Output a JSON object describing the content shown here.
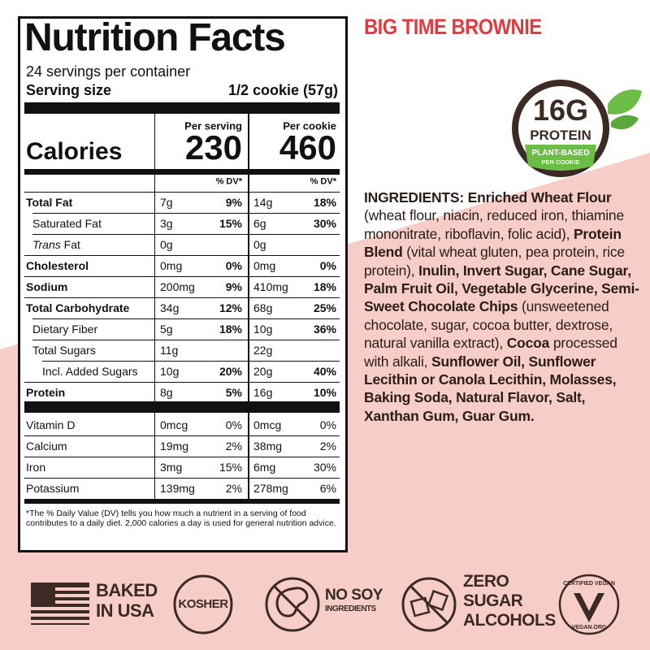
{
  "product_name": "BIG TIME BROWNIE",
  "nutrition_facts": {
    "title": "Nutrition Facts",
    "servings": "24 servings per container",
    "serving_size_label": "Serving size",
    "serving_size": "1/2 cookie (57g)",
    "column_headers": [
      "Per serving",
      "Per cookie"
    ],
    "calories_label": "Calories",
    "calories": [
      230,
      460
    ],
    "dv_headers": [
      "% DV*",
      "% DV*"
    ],
    "rows": [
      {
        "name": "Total Fat",
        "bold": true,
        "indent": 0,
        "amounts": [
          "7g",
          "14g"
        ],
        "dv": [
          "9%",
          "18%"
        ]
      },
      {
        "name": "Saturated Fat",
        "bold": false,
        "indent": 1,
        "amounts": [
          "3g",
          "6g"
        ],
        "dv": [
          "15%",
          "30%"
        ]
      },
      {
        "italic_prefix": "Trans",
        "name": "Fat",
        "bold": false,
        "indent": 1,
        "amounts": [
          "0g",
          "0g"
        ]
      },
      {
        "name": "Cholesterol",
        "bold": true,
        "indent": 0,
        "amounts": [
          "0mg",
          "0mg"
        ],
        "dv": [
          "0%",
          "0%"
        ]
      },
      {
        "name": "Sodium",
        "bold": true,
        "indent": 0,
        "amounts": [
          "200mg",
          "410mg"
        ],
        "dv": [
          "9%",
          "18%"
        ]
      },
      {
        "name": "Total Carbohydrate",
        "bold": true,
        "indent": 0,
        "amounts": [
          "34g",
          "68g"
        ],
        "dv": [
          "12%",
          "25%"
        ]
      },
      {
        "name": "Dietary Fiber",
        "bold": false,
        "indent": 1,
        "amounts": [
          "5g",
          "10g"
        ],
        "dv": [
          "18%",
          "36%"
        ]
      },
      {
        "name": "Total Sugars",
        "bold": false,
        "indent": 1,
        "amounts": [
          "11g",
          "22g"
        ]
      },
      {
        "name": "Incl. Added Sugars",
        "bold": false,
        "indent": 2,
        "amounts": [
          "10g",
          "20g"
        ],
        "dv": [
          "20%",
          "40%"
        ]
      },
      {
        "name": "Protein",
        "bold": true,
        "indent": 0,
        "amounts": [
          "8g",
          "16g"
        ],
        "dv": [
          "5%",
          "10%"
        ]
      }
    ],
    "vitamins": [
      {
        "name": "Vitamin D",
        "amounts": [
          "0mcg",
          "0mcg"
        ],
        "dv": [
          "0%",
          "0%"
        ]
      },
      {
        "name": "Calcium",
        "amounts": [
          "19mg",
          "38mg"
        ],
        "dv": [
          "2%",
          "2%"
        ]
      },
      {
        "name": "Iron",
        "amounts": [
          "3mg",
          "6mg"
        ],
        "dv": [
          "15%",
          "30%"
        ]
      },
      {
        "name": "Potassium",
        "amounts": [
          "139mg",
          "278mg"
        ],
        "dv": [
          "2%",
          "6%"
        ]
      }
    ],
    "footnote": "*The % Daily Value (DV) tells you how much a nutrient in a serving of food contributes to a daily diet. 2,000 calories a day is used for general nutrition advice."
  },
  "badge": {
    "amount": "16G",
    "label": "PROTEIN",
    "ribbon": "PLANT-BASED",
    "ribbon_sub": "PER COOKIE"
  },
  "ingredients": [
    {
      "text": "INGREDIENTS: Enriched Wheat Flour",
      "bold": true
    },
    {
      "text": " (wheat flour, niacin, reduced iron, thiamine mononitrate, riboflavin, folic acid), ",
      "bold": false
    },
    {
      "text": "Protein Blend",
      "bold": true
    },
    {
      "text": " (vital wheat gluten, pea protein, rice protein), ",
      "bold": false
    },
    {
      "text": "Inulin, Invert Sugar, Cane Sugar, Palm Fruit Oil, Vegetable Glycerine, Semi-Sweet Chocolate Chips",
      "bold": true
    },
    {
      "text": " (unsweetened chocolate, sugar, cocoa butter, dextrose, natural vanilla extract), ",
      "bold": false
    },
    {
      "text": "Cocoa",
      "bold": true
    },
    {
      "text": " processed with alkali, ",
      "bold": false
    },
    {
      "text": "Sunflower Oil, Sunflower Lecithin or Canola Lecithin, Molasses, Baking Soda, Natural Flavor, Salt, Xanthan Gum, Guar Gum.",
      "bold": true
    }
  ],
  "claims": {
    "baked": [
      "BAKED",
      "IN USA"
    ],
    "kosher": "KOSHER",
    "no_soy": [
      "NO SOY",
      "INGREDIENTS"
    ],
    "zero_sugar": [
      "ZERO",
      "SUGAR",
      "ALCOHOLS"
    ],
    "vegan": [
      "CERTIFIED VEGAN",
      "VEGAN.ORG"
    ]
  }
}
